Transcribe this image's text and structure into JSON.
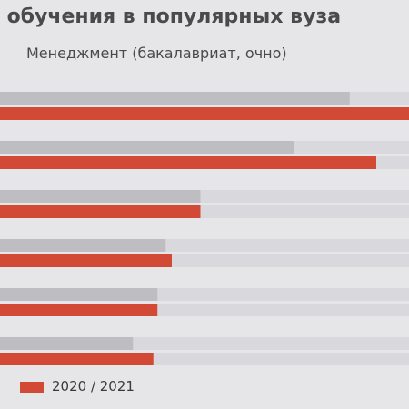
{
  "title": "ь обучения в популярных вуза",
  "subtitle": "Менеджмент (бакалавриат, очно)",
  "legend": {
    "prev_fragment": "0",
    "current_label": "2020 / 2021"
  },
  "colors": {
    "background": "#e6e6e8",
    "track": "#d9d9dd",
    "previous": "#bdbdc2",
    "current": "#d24a35",
    "text": "#4a4a4c"
  },
  "chart_data": {
    "type": "bar",
    "orientation": "horizontal",
    "series": [
      {
        "name": "",
        "role": "previous",
        "values": [
          0.855,
          0.72,
          0.49,
          0.405,
          0.385,
          0.325
        ]
      },
      {
        "name": "2020 / 2021",
        "role": "current",
        "values": [
          1.0,
          0.92,
          0.49,
          0.42,
          0.385,
          0.375
        ]
      }
    ],
    "value_scale": "fraction of visible track",
    "legend_position": "bottom"
  }
}
